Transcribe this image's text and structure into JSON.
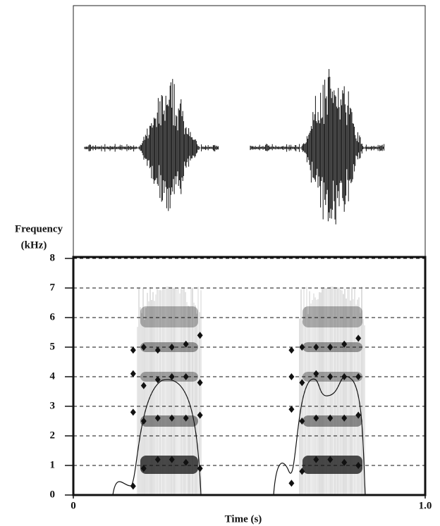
{
  "chart_data": {
    "type": "scatter",
    "ylabel": "Frequency",
    "yunit": "(kHz)",
    "xlabel": "Time (s)",
    "xlim": [
      0,
      1
    ],
    "xticks": [
      0,
      {
        "value": 1,
        "label": "1.0"
      }
    ],
    "ylim": [
      0,
      8
    ],
    "yticks": [
      0,
      1,
      2,
      3,
      4,
      5,
      6,
      7,
      8
    ],
    "grid": true,
    "x": [
      0.17,
      0.2,
      0.24,
      0.28,
      0.32,
      0.36,
      0.62,
      0.65,
      0.69,
      0.73,
      0.77,
      0.81
    ],
    "series": [
      {
        "color": "#111111",
        "values": [
          0.3,
          0.9,
          1.2,
          1.2,
          1.1,
          0.9,
          0.4,
          0.8,
          1.2,
          1.2,
          1.1,
          1.0
        ]
      },
      {
        "color": "#111111",
        "values": [
          2.8,
          2.5,
          2.6,
          2.6,
          2.6,
          2.7,
          2.9,
          2.5,
          2.6,
          2.6,
          2.6,
          2.7
        ]
      },
      {
        "color": "#111111",
        "values": [
          4.1,
          3.7,
          3.9,
          4.0,
          4.0,
          3.8,
          4.0,
          3.8,
          4.1,
          4.0,
          4.0,
          4.0
        ]
      },
      {
        "color": "#111111",
        "values": [
          4.9,
          5.0,
          4.9,
          5.0,
          5.1,
          5.4,
          4.9,
          5.0,
          5.0,
          5.0,
          5.1,
          5.3
        ]
      }
    ]
  }
}
